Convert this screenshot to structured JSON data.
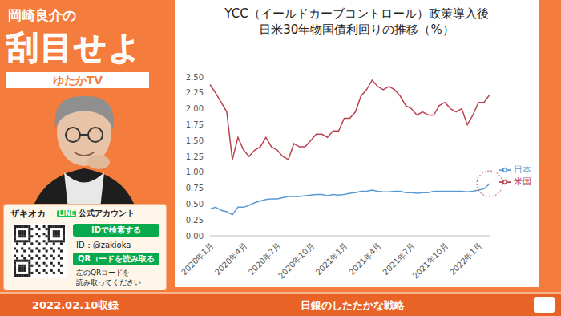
{
  "page": {
    "host_name": "岡崎良介の",
    "show_title": "刮目せよ",
    "channel": "ゆたかTV",
    "line_box": {
      "name": "ザキオカ",
      "badge": "LINE",
      "badge_text": "公式アカウント",
      "search_button": "IDで検索する",
      "id_text": "ID：@zakioka",
      "qr_button": "QRコードを読み取る",
      "qr_note_1": "左のQRコードを",
      "qr_note_2": "読み取ってください"
    },
    "recorded": "2022.02.10収録",
    "episode": "日銀のしたたかな戦略"
  },
  "chart_data": {
    "type": "line",
    "title": "YCC（イールドカーブコントロール）政策導入後",
    "subtitle": "日米30年物国債利回りの推移（%）",
    "categories": [
      "2020年1月",
      null,
      null,
      null,
      null,
      null,
      "2020年4月",
      null,
      null,
      null,
      null,
      null,
      "2020年7月",
      null,
      null,
      null,
      null,
      null,
      "2020年10月",
      null,
      null,
      null,
      null,
      null,
      "2021年1月",
      null,
      null,
      null,
      null,
      null,
      "2021年4月",
      null,
      null,
      null,
      null,
      null,
      "2021年7月",
      null,
      null,
      null,
      null,
      null,
      "2021年10月",
      null,
      null,
      null,
      null,
      null,
      "2022年1月",
      null,
      null
    ],
    "series": [
      {
        "name": "日本",
        "color": "#5b9bd5",
        "values": [
          0.42,
          0.45,
          0.4,
          0.38,
          0.33,
          0.45,
          0.45,
          0.48,
          0.52,
          0.55,
          0.57,
          0.58,
          0.58,
          0.6,
          0.62,
          0.62,
          0.62,
          0.63,
          0.64,
          0.65,
          0.65,
          0.63,
          0.65,
          0.64,
          0.65,
          0.67,
          0.68,
          0.7,
          0.7,
          0.72,
          0.7,
          0.69,
          0.69,
          0.7,
          0.7,
          0.68,
          0.68,
          0.67,
          0.68,
          0.68,
          0.7,
          0.7,
          0.7,
          0.7,
          0.7,
          0.7,
          0.69,
          0.7,
          0.72,
          0.74,
          0.82
        ]
      },
      {
        "name": "米国",
        "color": "#b8434f",
        "values": [
          2.38,
          2.25,
          2.1,
          1.95,
          1.2,
          1.55,
          1.35,
          1.25,
          1.35,
          1.4,
          1.55,
          1.4,
          1.35,
          1.25,
          1.2,
          1.45,
          1.4,
          1.4,
          1.5,
          1.6,
          1.6,
          1.55,
          1.65,
          1.65,
          1.85,
          1.85,
          1.95,
          2.2,
          2.3,
          2.45,
          2.35,
          2.3,
          2.35,
          2.3,
          2.2,
          2.05,
          2.0,
          1.9,
          1.95,
          1.9,
          1.9,
          2.05,
          2.1,
          2.0,
          1.95,
          2.0,
          1.75,
          1.9,
          2.1,
          2.1,
          2.22
        ]
      }
    ],
    "ylim": [
      0,
      2.5
    ],
    "yticks": [
      {
        "value": 0,
        "label": "0.00"
      },
      {
        "value": 0.25,
        "label": "0.25"
      },
      {
        "value": 0.5,
        "label": "0.50"
      },
      {
        "value": 0.75,
        "label": "0.75"
      },
      {
        "value": 1,
        "label": "1.00"
      },
      {
        "value": 1.25,
        "label": "1.25"
      },
      {
        "value": 1.5,
        "label": "1.50"
      },
      {
        "value": 1.75,
        "label": "1.75"
      },
      {
        "value": 2,
        "label": "2.00"
      },
      {
        "value": 2.25,
        "label": "2.25"
      },
      {
        "value": 2.5,
        "label": "2.50"
      }
    ],
    "grid": false,
    "legend": "right"
  }
}
